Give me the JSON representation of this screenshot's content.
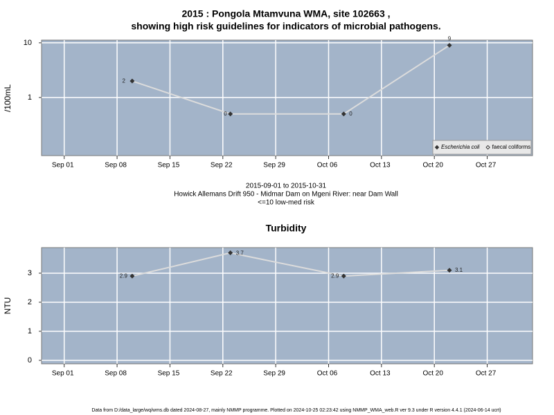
{
  "chart_data": [
    {
      "type": "line",
      "title": "2015 : Pongola Mtamvuna WMA, site 102663 ,",
      "subtitle": "showing high risk guidelines for indicators of microbial pathogens.",
      "y_label": "/100mL",
      "yscale": "log",
      "x": [
        "2015-09-10",
        "2015-09-23",
        "2015-10-08",
        "2015-10-22"
      ],
      "series": [
        {
          "name": "Escherichia coli",
          "color": "#333333",
          "marker": "filled-diamond",
          "values": [
            2,
            0.5,
            0.5,
            9
          ],
          "value_labels": [
            "2",
            "0",
            "0",
            "9"
          ]
        },
        {
          "name": "faecal coliforms",
          "color": "#333333",
          "marker": "open-diamond",
          "values": [
            null,
            null,
            null,
            null
          ]
        }
      ],
      "xlim": [
        "2015-08-29",
        "2015-11-02"
      ],
      "xticks": [
        {
          "value": "2015-09-01",
          "label": "Sep 01"
        },
        {
          "value": "2015-09-08",
          "label": "Sep 08"
        },
        {
          "value": "2015-09-15",
          "label": "Sep 15"
        },
        {
          "value": "2015-09-22",
          "label": "Sep 22"
        },
        {
          "value": "2015-09-29",
          "label": "Sep 29"
        },
        {
          "value": "2015-10-06",
          "label": "Oct 06"
        },
        {
          "value": "2015-10-13",
          "label": "Oct 13"
        },
        {
          "value": "2015-10-20",
          "label": "Oct 20"
        },
        {
          "value": "2015-10-27",
          "label": "Oct 27"
        }
      ],
      "ylim": [
        0.0865,
        11.2
      ],
      "yticks": [
        1,
        10
      ],
      "grid": true,
      "legend": "bottom-right",
      "annotations": [
        "2015-09-01 to 2015-10-31",
        "Howick Allemans Drift 950 - Midmar Dam on Mgeni River: near Dam Wall",
        "<=10 low-med risk"
      ]
    },
    {
      "type": "line",
      "title": "Turbidity",
      "y_label": "NTU",
      "x": [
        "2015-09-10",
        "2015-09-23",
        "2015-10-08",
        "2015-10-22"
      ],
      "series": [
        {
          "color": "#333333",
          "marker": "filled-diamond",
          "values": [
            2.9,
            3.7,
            2.9,
            3.1
          ]
        }
      ],
      "xlim": [
        "2015-08-29",
        "2015-11-02"
      ],
      "xticks": [
        {
          "value": "2015-09-01",
          "label": "Sep 01"
        },
        {
          "value": "2015-09-08",
          "label": "Sep 08"
        },
        {
          "value": "2015-09-15",
          "label": "Sep 15"
        },
        {
          "value": "2015-09-22",
          "label": "Sep 22"
        },
        {
          "value": "2015-09-29",
          "label": "Sep 29"
        },
        {
          "value": "2015-10-06",
          "label": "Oct 06"
        },
        {
          "value": "2015-10-13",
          "label": "Oct 13"
        },
        {
          "value": "2015-10-20",
          "label": "Oct 20"
        },
        {
          "value": "2015-10-27",
          "label": "Oct 27"
        }
      ],
      "ylim": [
        -0.12,
        3.88
      ],
      "yticks": [
        0,
        1,
        2,
        3
      ],
      "grid": true
    }
  ],
  "footer": "Data from D:/data_large/wq/wms.db dated 2024-08-27, mainly NMMP programme. Plotted on 2024-10-25 02:23:42 using NMMP_WMA_web.R ver 9.3 under R version 4.4.1 (2024-06-14 ucrt)"
}
